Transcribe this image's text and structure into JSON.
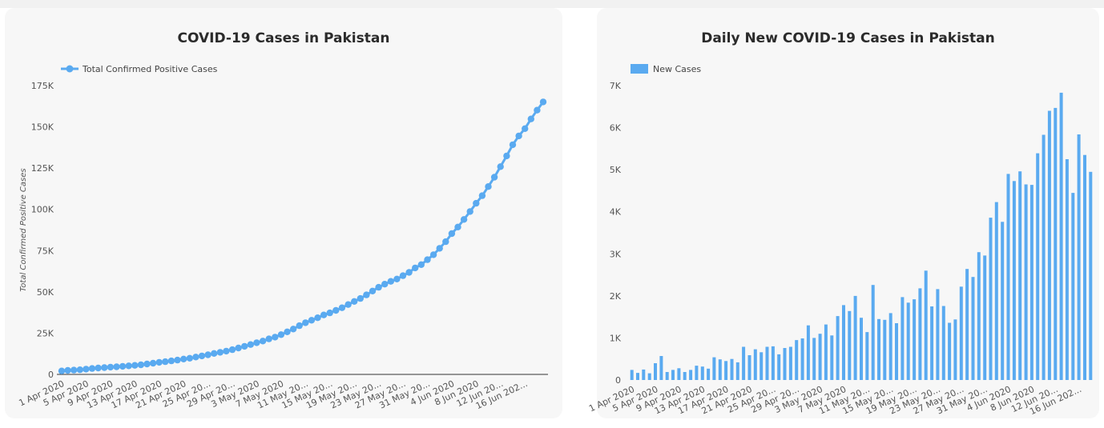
{
  "chart_data": [
    {
      "type": "line",
      "title": "COVID-19 Cases in Pakistan",
      "ylabel": "Total Confirmed Positive Cases",
      "xlabel": "",
      "ylim": [
        0,
        175000
      ],
      "yticks": [
        "0",
        "25K",
        "50K",
        "75K",
        "100K",
        "125K",
        "150K",
        "175K"
      ],
      "xtick_labels": [
        "1 Apr 2020",
        "5 Apr 2020",
        "9 Apr 2020",
        "13 Apr 2020",
        "17 Apr 2020",
        "21 Apr 2020",
        "25 Apr 20...",
        "29 Apr 20...",
        "3 May 2020",
        "7 May 2020",
        "11 May 20...",
        "15 May 20...",
        "19 May 20...",
        "23 May 20...",
        "27 May 20...",
        "31 May 20...",
        "4 Jun 2020",
        "8 Jun 2020",
        "12 Jun 20...",
        "16 Jun 202..."
      ],
      "legend": "top-left",
      "color": "#5aaaf0",
      "series": [
        {
          "name": "Total Confirmed Positive Cases",
          "values": [
            2100,
            2400,
            2600,
            2800,
            3200,
            3600,
            3900,
            4100,
            4400,
            4600,
            4900,
            5200,
            5500,
            5800,
            6300,
            6800,
            7300,
            7700,
            8200,
            8700,
            9300,
            9800,
            10500,
            11200,
            11900,
            12700,
            13400,
            14100,
            15000,
            16000,
            17000,
            18100,
            19200,
            20200,
            21500,
            22600,
            24100,
            25800,
            27500,
            29500,
            31300,
            32800,
            34300,
            36000,
            37300,
            38800,
            40400,
            42300,
            44200,
            46000,
            48200,
            50500,
            52800,
            54700,
            56400,
            57800,
            59800,
            61800,
            64500,
            66500,
            69500,
            72500,
            76400,
            80400,
            85300,
            89300,
            93900,
            98700,
            103700,
            108300,
            113800,
            119500,
            125900,
            132400,
            139200,
            144500,
            148900,
            154800,
            160100,
            165100
          ]
        }
      ]
    },
    {
      "type": "bar",
      "title": "Daily New COVID-19 Cases in Pakistan",
      "xlabel": "",
      "ylabel": "",
      "ylim": [
        0,
        7000
      ],
      "yticks": [
        "0",
        "1K",
        "2K",
        "3K",
        "4K",
        "5K",
        "6K",
        "7K"
      ],
      "xtick_labels": [
        "1 Apr 2020",
        "5 Apr 2020",
        "9 Apr 2020",
        "13 Apr 2020",
        "17 Apr 2020",
        "21 Apr 2020",
        "25 Apr 20...",
        "29 Apr 20...",
        "3 May 2020",
        "7 May 2020",
        "11 May 20...",
        "15 May 20...",
        "19 May 20...",
        "23 May 20...",
        "27 May 20...",
        "31 May 20...",
        "4 Jun 2020",
        "8 Jun 2020",
        "12 Jun 20...",
        "16 Jun 202..."
      ],
      "legend": "top-left",
      "color": "#5aaaf0",
      "series": [
        {
          "name": "New Cases",
          "values": [
            240,
            170,
            250,
            160,
            400,
            570,
            190,
            240,
            280,
            190,
            240,
            340,
            320,
            270,
            540,
            490,
            450,
            500,
            420,
            790,
            590,
            730,
            660,
            790,
            800,
            610,
            760,
            790,
            950,
            990,
            1300,
            1000,
            1100,
            1320,
            1060,
            1520,
            1780,
            1640,
            2000,
            1480,
            1140,
            2260,
            1450,
            1430,
            1590,
            1350,
            1970,
            1840,
            1920,
            2180,
            2600,
            1750,
            2160,
            1760,
            1360,
            1440,
            2220,
            2640,
            2450,
            3040,
            2960,
            3860,
            4230,
            3760,
            4900,
            4730,
            4960,
            4650,
            4640,
            5390,
            5830,
            6400,
            6470,
            6830,
            5250,
            4450,
            5840,
            5350,
            4950
          ]
        }
      ]
    }
  ]
}
